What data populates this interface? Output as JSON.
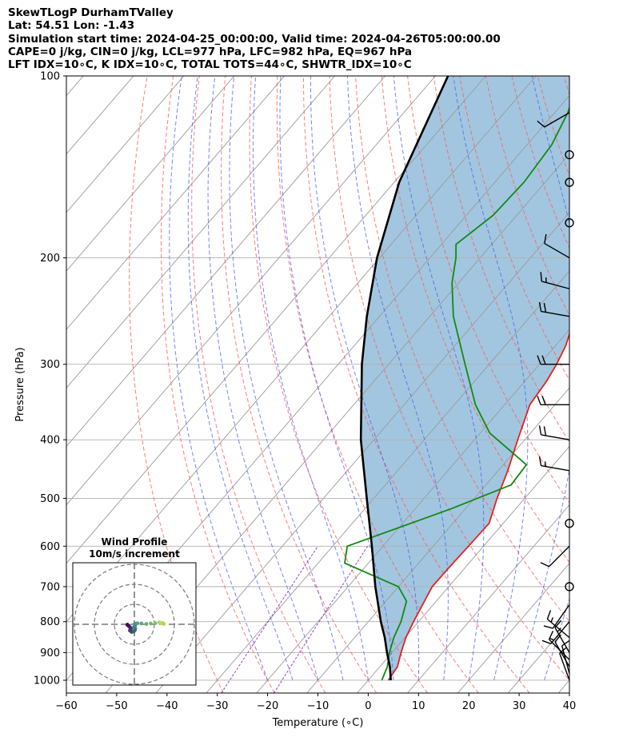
{
  "header": {
    "line1": "SkewTLogP DurhamTValley",
    "line2": "Lat: 54.51   Lon: -1.43",
    "line3": "Simulation start time: 2024-04-25_00:00:00, Valid time: 2024-04-26T05:00:00.00",
    "line4": "CAPE=0 j/kg, CIN=0 j/kg, LCL=977 hPa, LFC=982 hPa, EQ=967 hPa",
    "line5": "LFT IDX=10∘C, K IDX=10∘C, TOTAL TOTS=44∘C, SHWTR_IDX=10∘C"
  },
  "chart_data": [
    {
      "type": "line",
      "subtype": "skewT-logP",
      "xlabel": "Temperature (∘C)",
      "ylabel": "Pressure (hPa)",
      "xlim": [
        -60,
        40
      ],
      "ylim": [
        1050,
        100
      ],
      "y_scale": "log",
      "x_ticks": [
        -60,
        -50,
        -40,
        -30,
        -20,
        -10,
        0,
        10,
        20,
        30,
        40
      ],
      "x_tick_labels": [
        "−60",
        "−50",
        "−40",
        "−30",
        "−20",
        "−10",
        "0",
        "10",
        "20",
        "30",
        "40"
      ],
      "y_ticks": [
        1000,
        900,
        800,
        700,
        600,
        500,
        400,
        300,
        200,
        100
      ],
      "y_tick_labels": [
        "1000",
        "900",
        "800",
        "700",
        "600",
        "500",
        "400",
        "300",
        "200",
        "100"
      ],
      "grid": true,
      "colors": {
        "temperature": "#e8201a",
        "dewpoint": "#118a11",
        "parcel": "#000000",
        "shading": "#a2c6df",
        "dry_adiabat": "#ff5a5a",
        "moist_adiabat": "#4a5cf0",
        "mixing_ratio": "#9b3fcf",
        "isotherm": "#9a9a9a"
      },
      "series": [
        {
          "key": "temperature",
          "points": [
            [
              1000,
              4
            ],
            [
              950,
              3.5
            ],
            [
              900,
              1.8
            ],
            [
              850,
              0.2
            ],
            [
              800,
              -1
            ],
            [
              750,
              -2.1
            ],
            [
              700,
              -3.3
            ],
            [
              650,
              -3.2
            ],
            [
              600,
              -3
            ],
            [
              550,
              -2.8
            ],
            [
              500,
              -5.5
            ],
            [
              450,
              -8.1
            ],
            [
              400,
              -11.4
            ],
            [
              350,
              -15
            ],
            [
              320,
              -15.7
            ],
            [
              300,
              -16.6
            ],
            [
              280,
              -17.9
            ],
            [
              260,
              -20
            ],
            [
              240,
              -21.4
            ],
            [
              220,
              -22.6
            ],
            [
              200,
              -23.7
            ],
            [
              180,
              -24.2
            ],
            [
              160,
              -28.7
            ],
            [
              145,
              -31.4
            ],
            [
              130,
              -34.9
            ],
            [
              120,
              -37.3
            ],
            [
              110,
              -37.9
            ],
            [
              100,
              -39.2
            ]
          ]
        },
        {
          "key": "dewpoint",
          "points": [
            [
              1000,
              2.7
            ],
            [
              950,
              1.5
            ],
            [
              900,
              -0.5
            ],
            [
              850,
              -2.2
            ],
            [
              800,
              -3.5
            ],
            [
              740,
              -5.9
            ],
            [
              700,
              -10
            ],
            [
              640,
              -24.7
            ],
            [
              600,
              -27.1
            ],
            [
              520,
              -12.8
            ],
            [
              475,
              -5
            ],
            [
              440,
              -5.4
            ],
            [
              420,
              -10.3
            ],
            [
              390,
              -18.1
            ],
            [
              350,
              -25.8
            ],
            [
              300,
              -34.8
            ],
            [
              250,
              -45.3
            ],
            [
              220,
              -51.3
            ],
            [
              200,
              -54.8
            ],
            [
              190,
              -57.1
            ],
            [
              170,
              -54.7
            ],
            [
              150,
              -54.2
            ],
            [
              130,
              -55.1
            ],
            [
              115,
              -57.4
            ],
            [
              100,
              -61.2
            ]
          ]
        },
        {
          "key": "parcel",
          "points": [
            [
              1000,
              4.5
            ],
            [
              950,
              2
            ],
            [
              900,
              -1
            ],
            [
              850,
              -4
            ],
            [
              800,
              -7.5
            ],
            [
              700,
              -14.6
            ],
            [
              600,
              -22.2
            ],
            [
              500,
              -31.4
            ],
            [
              400,
              -42.6
            ],
            [
              300,
              -55.3
            ],
            [
              250,
              -62.5
            ],
            [
              200,
              -70.5
            ],
            [
              150,
              -79
            ],
            [
              100,
              -87.5
            ]
          ]
        }
      ],
      "wind_barbs": [
        {
          "p": 1000,
          "speed_kt": 10,
          "dir": 340
        },
        {
          "p": 975,
          "speed_kt": 10,
          "dir": 345
        },
        {
          "p": 950,
          "speed_kt": 10,
          "dir": 330
        },
        {
          "p": 925,
          "speed_kt": 10,
          "dir": 315
        },
        {
          "p": 900,
          "speed_kt": 15,
          "dir": 330
        },
        {
          "p": 850,
          "speed_kt": 15,
          "dir": 310
        },
        {
          "p": 800,
          "speed_kt": 15,
          "dir": 220
        },
        {
          "p": 750,
          "speed_kt": 10,
          "dir": 215
        },
        {
          "p": 700,
          "speed_kt": 0,
          "dir": 0
        },
        {
          "p": 600,
          "speed_kt": 10,
          "dir": 225
        },
        {
          "p": 550,
          "speed_kt": 0,
          "dir": 0
        },
        {
          "p": 450,
          "speed_kt": 15,
          "dir": 280
        },
        {
          "p": 400,
          "speed_kt": 20,
          "dir": 280
        },
        {
          "p": 350,
          "speed_kt": 20,
          "dir": 270
        },
        {
          "p": 300,
          "speed_kt": 20,
          "dir": 270
        },
        {
          "p": 250,
          "speed_kt": 20,
          "dir": 280
        },
        {
          "p": 225,
          "speed_kt": 15,
          "dir": 285
        },
        {
          "p": 200,
          "speed_kt": 10,
          "dir": 300
        },
        {
          "p": 175,
          "speed_kt": 0,
          "dir": 0
        },
        {
          "p": 150,
          "speed_kt": 0,
          "dir": 0
        },
        {
          "p": 135,
          "speed_kt": 0,
          "dir": 0
        },
        {
          "p": 115,
          "speed_kt": 10,
          "dir": 240
        }
      ]
    },
    {
      "type": "scatter",
      "subtype": "hodograph",
      "title": "Wind Profile",
      "subtitle": "10m/s increment",
      "ring_count": 3,
      "ring_increment": 10,
      "points": [
        [
          -3.5,
          -0.2
        ],
        [
          -2.8,
          -0.8
        ],
        [
          -2.2,
          -1.5
        ],
        [
          -1.8,
          -2.3
        ],
        [
          -2.2,
          -3.1
        ],
        [
          -1.4,
          -3.8
        ],
        [
          -0.4,
          -3.6
        ],
        [
          0.2,
          -3.0
        ],
        [
          0.4,
          -2.1
        ],
        [
          -0.2,
          -1.4
        ],
        [
          0.3,
          -0.6
        ],
        [
          0.3,
          0.3
        ],
        [
          1.5,
          0.5
        ],
        [
          3.5,
          0.4
        ],
        [
          6,
          0.2
        ],
        [
          8.2,
          0.4
        ],
        [
          10.5,
          0.6
        ],
        [
          12.6,
          0.9
        ],
        [
          14.1,
          0.6
        ],
        [
          14.7,
          0.2
        ],
        [
          13.2,
          0.7
        ]
      ]
    }
  ]
}
